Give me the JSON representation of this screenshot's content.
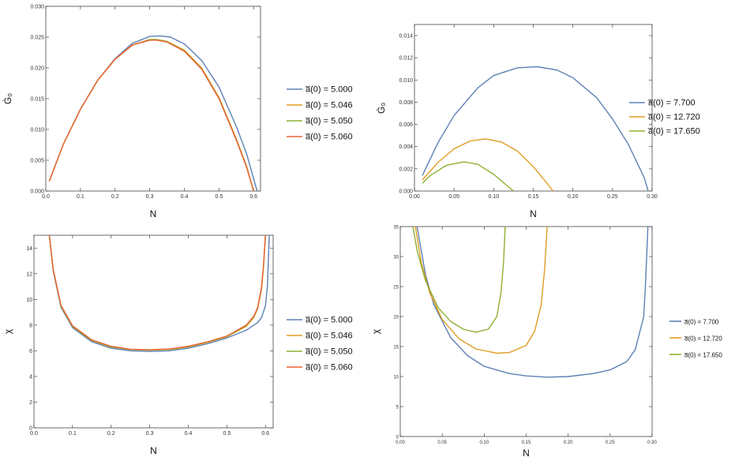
{
  "chart_data": [
    {
      "type": "line",
      "xlabel": "N",
      "ylabel": "Ġ₀",
      "xlim": [
        0,
        0.62
      ],
      "ylim": [
        0,
        0.03
      ],
      "xticks": [
        "0.0",
        "0.1",
        "0.2",
        "0.3",
        "0.4",
        "0.5",
        "0.6"
      ],
      "yticks": [
        "0.000",
        "0.005",
        "0.010",
        "0.015",
        "0.020",
        "0.025",
        "0.030"
      ],
      "legend_position": "right",
      "series": [
        {
          "name": "a̅(0) = 5.000",
          "color": "#5E81B5",
          "x": [
            0.01,
            0.05,
            0.1,
            0.15,
            0.2,
            0.25,
            0.3,
            0.33,
            0.36,
            0.4,
            0.45,
            0.5,
            0.55,
            0.58,
            0.61
          ],
          "y": [
            0.0016,
            0.0075,
            0.0133,
            0.018,
            0.0215,
            0.024,
            0.0251,
            0.0252,
            0.025,
            0.0239,
            0.0212,
            0.0169,
            0.0105,
            0.006,
            0.0
          ]
        },
        {
          "name": "a̅(0) = 5.046",
          "color": "#E19C24",
          "x": [
            0.01,
            0.05,
            0.1,
            0.15,
            0.2,
            0.25,
            0.3,
            0.32,
            0.35,
            0.4,
            0.45,
            0.5,
            0.55,
            0.58,
            0.6
          ],
          "y": [
            0.0016,
            0.0075,
            0.0133,
            0.018,
            0.0214,
            0.0237,
            0.0246,
            0.0246,
            0.0243,
            0.0229,
            0.02,
            0.0152,
            0.0085,
            0.004,
            0.0
          ]
        },
        {
          "name": "a̅(0) = 5.050",
          "color": "#8FB032",
          "x": [
            0.01,
            0.05,
            0.1,
            0.15,
            0.2,
            0.25,
            0.3,
            0.32,
            0.35,
            0.4,
            0.45,
            0.5,
            0.55,
            0.58,
            0.6
          ],
          "y": [
            0.0016,
            0.0075,
            0.0133,
            0.018,
            0.0214,
            0.0237,
            0.0246,
            0.0246,
            0.0243,
            0.0228,
            0.0199,
            0.0151,
            0.0084,
            0.0039,
            0.0
          ]
        },
        {
          "name": "a̅(0) = 5.060",
          "color": "#EB6235",
          "x": [
            0.01,
            0.05,
            0.1,
            0.15,
            0.2,
            0.25,
            0.3,
            0.32,
            0.35,
            0.4,
            0.45,
            0.5,
            0.55,
            0.58,
            0.6
          ],
          "y": [
            0.0016,
            0.0075,
            0.0133,
            0.018,
            0.0214,
            0.0237,
            0.0245,
            0.0245,
            0.0242,
            0.0227,
            0.0198,
            0.015,
            0.0083,
            0.0038,
            0.0
          ]
        }
      ]
    },
    {
      "type": "line",
      "xlabel": "N",
      "ylabel": "Ġ₀",
      "xlim": [
        0,
        0.3
      ],
      "ylim": [
        0,
        0.015
      ],
      "xticks": [
        "0.00",
        "0.05",
        "0.10",
        "0.15",
        "0.20",
        "0.25",
        "0.30"
      ],
      "yticks": [
        "0.000",
        "0.002",
        "0.004",
        "0.006",
        "0.008",
        "0.010",
        "0.012",
        "0.014"
      ],
      "legend_position": "right",
      "series": [
        {
          "name": "a̅(0) = 7.700",
          "color": "#5E81B5",
          "x": [
            0.01,
            0.03,
            0.05,
            0.08,
            0.1,
            0.13,
            0.155,
            0.18,
            0.2,
            0.23,
            0.25,
            0.27,
            0.29,
            0.295
          ],
          "y": [
            0.0014,
            0.0044,
            0.0068,
            0.0093,
            0.0104,
            0.0111,
            0.0112,
            0.0109,
            0.0102,
            0.0084,
            0.0065,
            0.0042,
            0.0012,
            0.0
          ]
        },
        {
          "name": "a̅(0) = 12.720",
          "color": "#E19C24",
          "x": [
            0.01,
            0.03,
            0.05,
            0.07,
            0.09,
            0.11,
            0.13,
            0.15,
            0.165,
            0.175
          ],
          "y": [
            0.001,
            0.0026,
            0.0038,
            0.0045,
            0.0047,
            0.0044,
            0.0036,
            0.0022,
            0.0009,
            0.0
          ]
        },
        {
          "name": "a̅(0) = 17.650",
          "color": "#8FB032",
          "x": [
            0.01,
            0.02,
            0.04,
            0.06,
            0.065,
            0.08,
            0.1,
            0.115,
            0.125
          ],
          "y": [
            0.0007,
            0.0014,
            0.0023,
            0.0026,
            0.0026,
            0.0024,
            0.0015,
            0.0006,
            0.0
          ]
        }
      ]
    },
    {
      "type": "line",
      "xlabel": "N",
      "ylabel": "χ",
      "xlim": [
        0,
        0.62
      ],
      "ylim": [
        0,
        15
      ],
      "xticks": [
        "0.0",
        "0.1",
        "0.2",
        "0.3",
        "0.4",
        "0.5",
        "0.6"
      ],
      "yticks": [
        "0",
        "2",
        "4",
        "6",
        "8",
        "10",
        "12",
        "14"
      ],
      "legend_position": "right",
      "series": [
        {
          "name": "a̅(0) = 5.000",
          "color": "#5E81B5",
          "x": [
            0.04,
            0.05,
            0.07,
            0.1,
            0.15,
            0.2,
            0.25,
            0.3,
            0.35,
            0.4,
            0.45,
            0.5,
            0.55,
            0.58,
            0.59,
            0.6,
            0.605,
            0.61
          ],
          "y": [
            15,
            12.2,
            9.4,
            7.8,
            6.7,
            6.2,
            6.0,
            5.95,
            6.0,
            6.2,
            6.55,
            7.0,
            7.6,
            8.2,
            8.6,
            9.5,
            11,
            15
          ]
        },
        {
          "name": "a̅(0) = 5.046",
          "color": "#E19C24",
          "x": [
            0.04,
            0.05,
            0.07,
            0.1,
            0.15,
            0.2,
            0.25,
            0.3,
            0.35,
            0.4,
            0.45,
            0.5,
            0.55,
            0.57,
            0.58,
            0.59,
            0.595,
            0.6
          ],
          "y": [
            15,
            12.3,
            9.5,
            7.9,
            6.8,
            6.3,
            6.1,
            6.05,
            6.1,
            6.3,
            6.65,
            7.1,
            7.9,
            8.6,
            9.3,
            10.8,
            12.5,
            15
          ]
        },
        {
          "name": "a̅(0) = 5.050",
          "color": "#8FB032",
          "x": [
            0.04,
            0.05,
            0.07,
            0.1,
            0.15,
            0.2,
            0.25,
            0.3,
            0.35,
            0.4,
            0.45,
            0.5,
            0.55,
            0.57,
            0.58,
            0.59,
            0.595,
            0.6
          ],
          "y": [
            15,
            12.3,
            9.5,
            7.9,
            6.8,
            6.3,
            6.1,
            6.06,
            6.12,
            6.32,
            6.67,
            7.12,
            7.95,
            8.65,
            9.35,
            10.9,
            12.6,
            15
          ]
        },
        {
          "name": "a̅(0) = 5.060",
          "color": "#EB6235",
          "x": [
            0.04,
            0.05,
            0.07,
            0.1,
            0.15,
            0.2,
            0.25,
            0.3,
            0.35,
            0.4,
            0.45,
            0.5,
            0.55,
            0.57,
            0.58,
            0.59,
            0.595,
            0.6
          ],
          "y": [
            15,
            12.35,
            9.55,
            7.95,
            6.85,
            6.35,
            6.12,
            6.08,
            6.14,
            6.35,
            6.7,
            7.15,
            8.0,
            8.7,
            9.4,
            11.0,
            12.7,
            15
          ]
        }
      ]
    },
    {
      "type": "line",
      "xlabel": "N",
      "ylabel": "χ",
      "xlim": [
        0,
        0.3
      ],
      "ylim": [
        0,
        35
      ],
      "xticks": [
        "0.00",
        "0.05",
        "0.10",
        "0.15",
        "0.20",
        "0.25",
        "0.30"
      ],
      "yticks": [
        "0",
        "5",
        "10",
        "15",
        "20",
        "25",
        "30",
        "35"
      ],
      "legend_position": "right",
      "series": [
        {
          "name": "a̅(0) = 7.700",
          "color": "#5E81B5",
          "x": [
            0.02,
            0.03,
            0.04,
            0.06,
            0.08,
            0.1,
            0.13,
            0.15,
            0.175,
            0.2,
            0.23,
            0.25,
            0.27,
            0.28,
            0.29,
            0.292,
            0.295
          ],
          "y": [
            35,
            27,
            22,
            16.5,
            13.5,
            11.7,
            10.5,
            10.1,
            9.9,
            10.0,
            10.5,
            11.1,
            12.5,
            14.5,
            20,
            25,
            35
          ]
        },
        {
          "name": "a̅(0) = 12.720",
          "color": "#E19C24",
          "x": [
            0.018,
            0.025,
            0.035,
            0.05,
            0.07,
            0.09,
            0.115,
            0.13,
            0.15,
            0.16,
            0.168,
            0.172,
            0.175
          ],
          "y": [
            35,
            29,
            24,
            19.5,
            16.3,
            14.6,
            13.9,
            14.0,
            15.2,
            17.5,
            22,
            28,
            35
          ]
        },
        {
          "name": "a̅(0) = 17.650",
          "color": "#8FB032",
          "x": [
            0.015,
            0.02,
            0.03,
            0.045,
            0.06,
            0.075,
            0.09,
            0.105,
            0.115,
            0.12,
            0.123,
            0.125
          ],
          "y": [
            35,
            31,
            26,
            21.5,
            19.2,
            17.9,
            17.4,
            17.9,
            20,
            24,
            29,
            35
          ]
        }
      ]
    }
  ]
}
